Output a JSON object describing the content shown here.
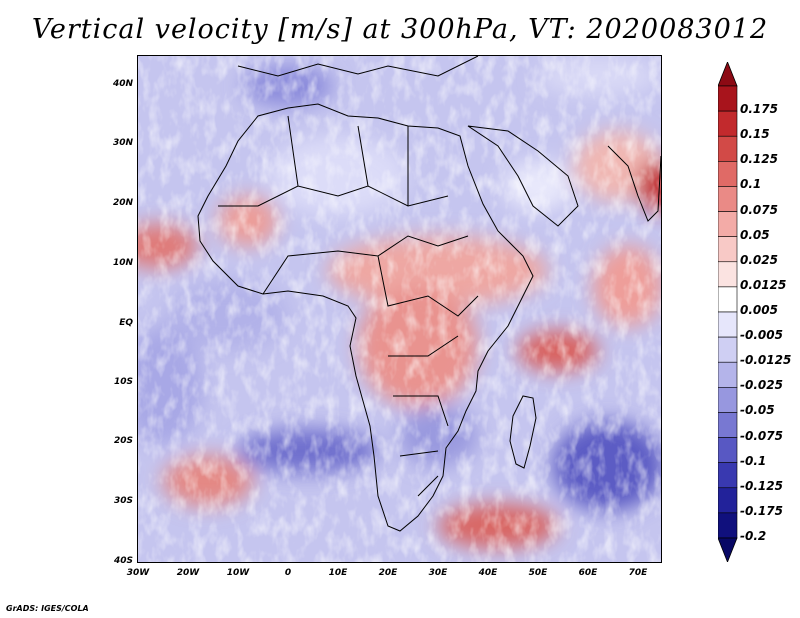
{
  "title": "Vertical velocity [m/s] at 300hPa, VT: 2020083012",
  "footer": "GrADS: IGES/COLA",
  "map": {
    "region": "Africa",
    "lon_range": [
      -30,
      75
    ],
    "lat_range": [
      -40,
      45
    ],
    "y_ticks": [
      "40N",
      "30N",
      "20N",
      "10N",
      "EQ",
      "10S",
      "20S",
      "30S",
      "40S"
    ],
    "x_ticks": [
      "30W",
      "20W",
      "10W",
      "0",
      "10E",
      "20E",
      "30E",
      "40E",
      "50E",
      "60E",
      "70E"
    ]
  },
  "colorbar": {
    "labels": [
      "0.175",
      "0.15",
      "0.125",
      "0.1",
      "0.075",
      "0.05",
      "0.025",
      "0.0125",
      "0.005",
      "-0.005",
      "-0.0125",
      "-0.025",
      "-0.05",
      "-0.075",
      "-0.1",
      "-0.125",
      "-0.175",
      "-0.2"
    ],
    "colors": [
      "#a8141c",
      "#c22a2d",
      "#d24a47",
      "#e06a66",
      "#ea8a86",
      "#f3aba7",
      "#f8c9c6",
      "#fbe3e1",
      "#ffffff",
      "#e6e6fb",
      "#cfcff3",
      "#b4b4ea",
      "#9797df",
      "#7878d2",
      "#5858c3",
      "#3939b0",
      "#22229a",
      "#10107d"
    ],
    "top_arrow_color": "#8c0a14",
    "bottom_arrow_color": "#080865"
  },
  "colors": {
    "ocean_base": "#c7c7f0",
    "land_border": "#000000"
  }
}
